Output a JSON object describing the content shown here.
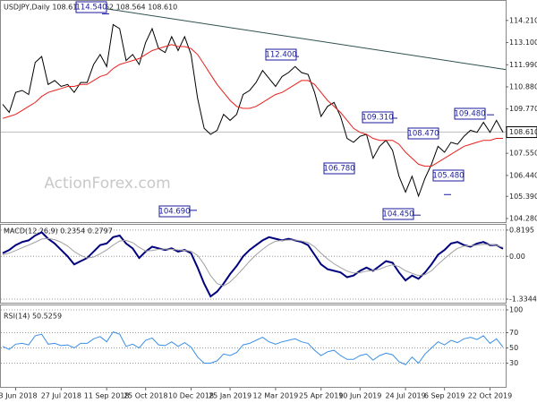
{
  "chart_data": [
    {
      "type": "line",
      "title": "USDJPY,Daily  108.616 108.862 108.564 108.610",
      "watermark": "ActionForex.com",
      "ylim": [
        104.1,
        115.19
      ],
      "yticks": [
        {
          "value": 114.21,
          "label": "114.210"
        },
        {
          "value": 113.1,
          "label": "113.100"
        },
        {
          "value": 111.99,
          "label": "111.990"
        },
        {
          "value": 110.88,
          "label": "110.880"
        },
        {
          "value": 109.77,
          "label": "109.770"
        },
        {
          "value": 107.55,
          "label": "107.550"
        },
        {
          "value": 106.44,
          "label": "106.440"
        },
        {
          "value": 105.39,
          "label": "105.390"
        },
        {
          "value": 104.28,
          "label": "104.280"
        }
      ],
      "series": [
        {
          "name": "USDJPY",
          "color": "#000000",
          "values": [
            110.0,
            109.6,
            110.6,
            110.7,
            110.5,
            112.1,
            112.4,
            111.0,
            111.2,
            110.9,
            111.0,
            110.6,
            111.1,
            111.1,
            112.0,
            112.5,
            111.9,
            114.0,
            113.8,
            112.2,
            112.5,
            112.0,
            113.1,
            113.8,
            112.8,
            112.6,
            113.4,
            112.7,
            113.4,
            112.5,
            110.3,
            108.8,
            108.5,
            108.7,
            109.5,
            109.2,
            109.5,
            110.5,
            110.7,
            111.1,
            111.7,
            111.3,
            110.9,
            111.4,
            111.6,
            111.9,
            111.6,
            111.5,
            110.6,
            109.4,
            109.9,
            110.1,
            109.4,
            108.3,
            108.1,
            108.4,
            108.5,
            107.3,
            107.9,
            108.2,
            107.7,
            106.4,
            105.6,
            106.4,
            105.4,
            106.3,
            107.0,
            107.9,
            107.6,
            108.1,
            108.0,
            108.4,
            108.7,
            108.6,
            109.1,
            108.6,
            109.2,
            108.6
          ]
        },
        {
          "name": "MA",
          "color": "#e8201c",
          "values": [
            109.3,
            109.4,
            109.5,
            109.7,
            109.9,
            110.1,
            110.4,
            110.6,
            110.7,
            110.8,
            110.9,
            110.9,
            111.0,
            111.0,
            111.2,
            111.4,
            111.5,
            111.8,
            112.0,
            112.1,
            112.2,
            112.3,
            112.5,
            112.7,
            112.8,
            112.9,
            113.0,
            112.9,
            112.9,
            112.8,
            112.5,
            112.0,
            111.5,
            111.0,
            110.6,
            110.2,
            109.9,
            109.8,
            109.8,
            109.9,
            110.1,
            110.3,
            110.5,
            110.6,
            110.8,
            111.0,
            111.2,
            111.2,
            111.0,
            110.6,
            110.2,
            109.9,
            109.6,
            109.2,
            108.8,
            108.6,
            108.5,
            108.3,
            108.2,
            108.2,
            108.2,
            108.0,
            107.6,
            107.3,
            107.0,
            106.9,
            106.9,
            107.1,
            107.3,
            107.5,
            107.7,
            107.9,
            108.0,
            108.1,
            108.2,
            108.2,
            108.3,
            108.3
          ]
        }
      ],
      "trend_line": {
        "start": 114.8,
        "end": 111.75,
        "color": "#2f4f4f"
      },
      "current_price": {
        "value": 108.61,
        "label": "108.610"
      },
      "annotations": [
        {
          "value": 114.54,
          "label": "114.540"
        },
        {
          "value": 104.69,
          "label": "104.690"
        },
        {
          "value": 112.4,
          "label": "112.400"
        },
        {
          "value": 109.31,
          "label": "109.310"
        },
        {
          "value": 106.78,
          "label": "106.780"
        },
        {
          "value": 108.47,
          "label": "108.470"
        },
        {
          "value": 104.45,
          "label": "104.450"
        },
        {
          "value": 105.48,
          "label": "105.480"
        },
        {
          "value": 109.48,
          "label": "109.480"
        }
      ]
    },
    {
      "type": "line",
      "title": "MACD(12,26,9) 0.2354 0.2797",
      "ylim": [
        -1.445,
        0.985
      ],
      "yticks": [
        0.8195,
        {
          "value": 0,
          "label": "0.00"
        },
        -1.3344
      ],
      "series": [
        {
          "name": "MACD",
          "color": "#00007f",
          "values": [
            0.1,
            0.2,
            0.35,
            0.45,
            0.5,
            0.65,
            0.75,
            0.55,
            0.4,
            0.2,
            0.0,
            -0.25,
            -0.15,
            -0.05,
            0.15,
            0.35,
            0.4,
            0.6,
            0.65,
            0.4,
            0.25,
            -0.05,
            0.15,
            0.3,
            0.25,
            0.2,
            0.25,
            0.15,
            0.2,
            0.1,
            -0.35,
            -0.85,
            -1.25,
            -1.1,
            -0.85,
            -0.55,
            -0.3,
            0.0,
            0.2,
            0.35,
            0.5,
            0.6,
            0.55,
            0.5,
            0.55,
            0.5,
            0.45,
            0.35,
            0.05,
            -0.25,
            -0.4,
            -0.45,
            -0.5,
            -0.65,
            -0.6,
            -0.45,
            -0.35,
            -0.45,
            -0.3,
            -0.15,
            -0.2,
            -0.5,
            -0.75,
            -0.6,
            -0.7,
            -0.5,
            -0.25,
            0.05,
            0.2,
            0.4,
            0.45,
            0.35,
            0.3,
            0.4,
            0.45,
            0.35,
            0.35,
            0.24
          ]
        },
        {
          "name": "Signal",
          "color": "#a0a0a0",
          "values": [
            0.05,
            0.1,
            0.18,
            0.27,
            0.35,
            0.44,
            0.54,
            0.56,
            0.52,
            0.44,
            0.32,
            0.15,
            0.03,
            -0.05,
            -0.02,
            0.08,
            0.2,
            0.35,
            0.48,
            0.5,
            0.43,
            0.28,
            0.17,
            0.18,
            0.22,
            0.23,
            0.22,
            0.2,
            0.19,
            0.16,
            0.03,
            -0.25,
            -0.6,
            -0.85,
            -0.92,
            -0.8,
            -0.6,
            -0.38,
            -0.15,
            0.05,
            0.22,
            0.37,
            0.47,
            0.5,
            0.51,
            0.51,
            0.48,
            0.43,
            0.3,
            0.1,
            -0.08,
            -0.23,
            -0.35,
            -0.46,
            -0.52,
            -0.51,
            -0.46,
            -0.44,
            -0.4,
            -0.32,
            -0.26,
            -0.32,
            -0.45,
            -0.53,
            -0.6,
            -0.57,
            -0.45,
            -0.25,
            -0.07,
            0.1,
            0.25,
            0.32,
            0.33,
            0.35,
            0.38,
            0.37,
            0.34,
            0.28
          ]
        }
      ]
    },
    {
      "type": "line",
      "title": "RSI(14) 50.5259",
      "ylim": [
        0,
        100
      ],
      "yticks": [
        100,
        70,
        50,
        30
      ],
      "categories": [
        null,
        null,
        "13 Jun 2018",
        null,
        null,
        null,
        null,
        null,
        null,
        "27 Jul 2018",
        null,
        null,
        null,
        null,
        null,
        null,
        "11 Sep 2018",
        null,
        null,
        null,
        null,
        null,
        "25 Oct 2018",
        null,
        null,
        null,
        null,
        null,
        null,
        "10 Dec 2018",
        null,
        null,
        null,
        null,
        null,
        "25 Jan 2019",
        null,
        null,
        null,
        null,
        null,
        null,
        "12 Mar 2019",
        null,
        null,
        null,
        null,
        null,
        null,
        "25 Apr 2019",
        null,
        null,
        null,
        null,
        null,
        "10 Jun 2019",
        null,
        null,
        null,
        null,
        null,
        null,
        "24 Jul 2019",
        null,
        null,
        null,
        null,
        null,
        "6 Sep 2019",
        null,
        null,
        null,
        null,
        null,
        null,
        "22 Oct 2019",
        null,
        null
      ],
      "series": [
        {
          "name": "RSI",
          "color": "#3a8ee6",
          "values": [
            52,
            48,
            55,
            56,
            54,
            66,
            68,
            55,
            56,
            53,
            54,
            50,
            56,
            56,
            62,
            65,
            58,
            71,
            68,
            52,
            55,
            50,
            60,
            63,
            54,
            53,
            58,
            52,
            57,
            51,
            38,
            30,
            30,
            33,
            42,
            40,
            44,
            54,
            56,
            60,
            64,
            58,
            55,
            58,
            60,
            62,
            58,
            56,
            47,
            40,
            45,
            47,
            40,
            35,
            35,
            40,
            42,
            34,
            40,
            43,
            41,
            32,
            28,
            38,
            30,
            42,
            50,
            58,
            54,
            60,
            57,
            62,
            64,
            61,
            66,
            56,
            62,
            51
          ]
        }
      ]
    }
  ]
}
